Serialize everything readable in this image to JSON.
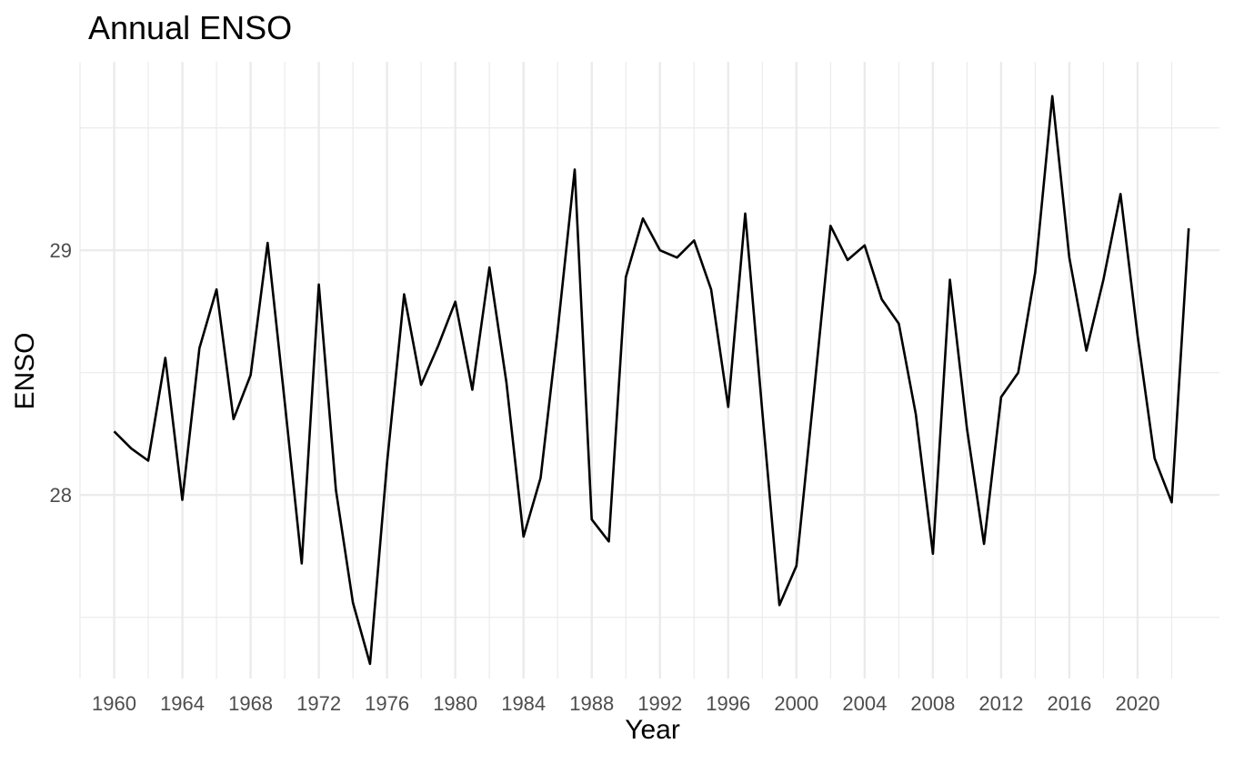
{
  "chart_data": {
    "type": "line",
    "title": "Annual ENSO",
    "xlabel": "Year",
    "ylabel": "ENSO",
    "xlim": [
      1958,
      2024.8
    ],
    "ylim": [
      27.25,
      29.77
    ],
    "x_ticks": [
      1960,
      1964,
      1968,
      1972,
      1976,
      1980,
      1984,
      1988,
      1992,
      1996,
      2000,
      2004,
      2008,
      2012,
      2016,
      2020
    ],
    "y_ticks": [
      28,
      29
    ],
    "grid": true,
    "line_color": "#000000",
    "grid_color": "#ebebeb",
    "x": [
      1960,
      1961,
      1962,
      1963,
      1964,
      1965,
      1966,
      1967,
      1968,
      1969,
      1970,
      1971,
      1972,
      1973,
      1974,
      1975,
      1976,
      1977,
      1978,
      1979,
      1980,
      1981,
      1982,
      1983,
      1984,
      1985,
      1986,
      1987,
      1988,
      1989,
      1990,
      1991,
      1992,
      1993,
      1994,
      1995,
      1996,
      1997,
      1998,
      1999,
      2000,
      2001,
      2002,
      2003,
      2004,
      2005,
      2006,
      2007,
      2008,
      2009,
      2010,
      2011,
      2012,
      2013,
      2014,
      2015,
      2016,
      2017,
      2018,
      2019,
      2020,
      2021,
      2022,
      2023
    ],
    "values": [
      28.26,
      28.19,
      28.14,
      28.56,
      27.98,
      28.6,
      28.84,
      28.31,
      28.49,
      29.03,
      28.38,
      27.72,
      28.86,
      28.02,
      27.56,
      27.31,
      28.13,
      28.82,
      28.45,
      28.61,
      28.79,
      28.43,
      28.93,
      28.46,
      27.83,
      28.07,
      28.67,
      29.33,
      27.9,
      27.81,
      28.89,
      29.13,
      29.0,
      28.97,
      29.04,
      28.84,
      28.36,
      29.15,
      28.34,
      27.55,
      27.71,
      28.4,
      29.1,
      28.96,
      29.02,
      28.8,
      28.7,
      28.33,
      27.76,
      28.88,
      28.27,
      27.8,
      28.4,
      28.5,
      28.91,
      29.63,
      28.97,
      28.59,
      28.88,
      29.23,
      28.65,
      28.15,
      27.97,
      29.09
    ]
  }
}
